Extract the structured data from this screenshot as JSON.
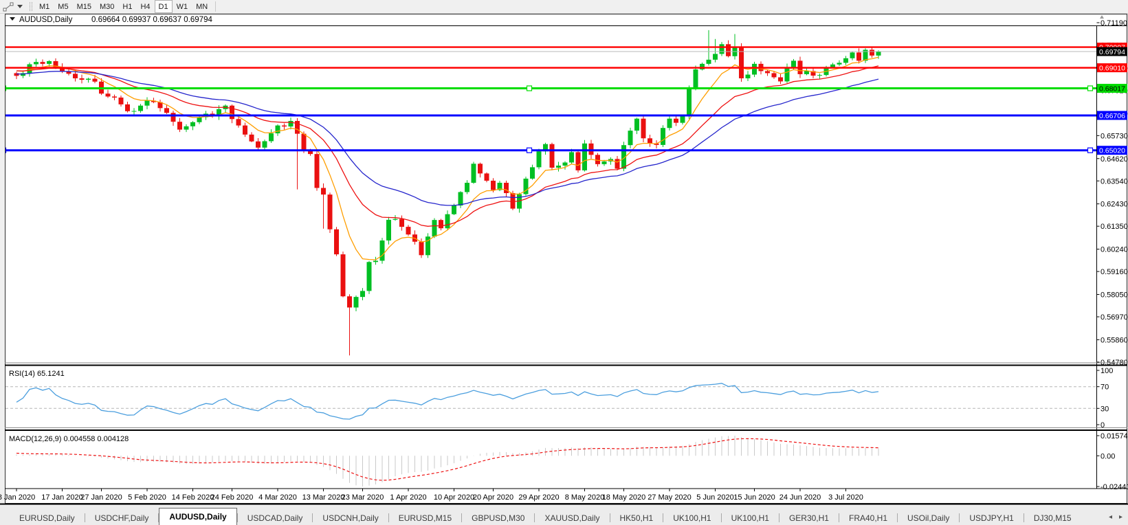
{
  "toolbar": {
    "timeframes": [
      {
        "label": "M1",
        "active": false
      },
      {
        "label": "M5",
        "active": false
      },
      {
        "label": "M15",
        "active": false
      },
      {
        "label": "M30",
        "active": false
      },
      {
        "label": "H1",
        "active": false
      },
      {
        "label": "H4",
        "active": false
      },
      {
        "label": "D1",
        "active": true
      },
      {
        "label": "W1",
        "active": false
      },
      {
        "label": "MN",
        "active": false
      }
    ]
  },
  "chart_title": {
    "symbol": "AUDUSD,Daily",
    "ohlc": "0.69664 0.69937 0.69637 0.69794"
  },
  "chart_data": {
    "type": "candlestick",
    "symbol": "AUDUSD",
    "timeframe": "Daily",
    "ohlc_display": {
      "open": "0.69664",
      "high": "0.69937",
      "low": "0.69637",
      "close": "0.69794"
    },
    "closes": [
      0.6862,
      0.6875,
      0.6918,
      0.6929,
      0.692,
      0.6933,
      0.6905,
      0.6885,
      0.6872,
      0.685,
      0.6843,
      0.6848,
      0.6834,
      0.6776,
      0.6762,
      0.6757,
      0.6724,
      0.6691,
      0.6692,
      0.6718,
      0.6742,
      0.6735,
      0.6706,
      0.6683,
      0.664,
      0.6602,
      0.6618,
      0.6638,
      0.6662,
      0.6679,
      0.6668,
      0.6701,
      0.6718,
      0.6653,
      0.6622,
      0.6578,
      0.6545,
      0.6515,
      0.6546,
      0.6584,
      0.6622,
      0.6617,
      0.6644,
      0.6582,
      0.6502,
      0.6484,
      0.632,
      0.6288,
      0.612,
      0.5999,
      0.5796,
      0.5742,
      0.5793,
      0.5822,
      0.5962,
      0.5968,
      0.6066,
      0.6166,
      0.617,
      0.6132,
      0.6095,
      0.606,
      0.5995,
      0.6085,
      0.6165,
      0.6125,
      0.6193,
      0.6235,
      0.63,
      0.6345,
      0.6437,
      0.639,
      0.6355,
      0.631,
      0.6345,
      0.6295,
      0.622,
      0.629,
      0.6365,
      0.642,
      0.6497,
      0.6532,
      0.6418,
      0.6428,
      0.6443,
      0.6493,
      0.6405,
      0.6535,
      0.648,
      0.6435,
      0.6448,
      0.646,
      0.6413,
      0.6527,
      0.6597,
      0.6655,
      0.656,
      0.6535,
      0.6528,
      0.661,
      0.6655,
      0.6635,
      0.6667,
      0.6797,
      0.6893,
      0.692,
      0.694,
      0.6968,
      0.7015,
      0.6957,
      0.7,
      0.685,
      0.6868,
      0.692,
      0.6885,
      0.6875,
      0.6855,
      0.6835,
      0.6905,
      0.6935,
      0.687,
      0.6885,
      0.6863,
      0.6866,
      0.6903,
      0.6917,
      0.6925,
      0.6947,
      0.6975,
      0.6935,
      0.6988,
      0.696,
      0.6979
    ],
    "specials": {
      "43": {
        "low": 0.6313
      },
      "47": {
        "low": 0.6123,
        "high": 0.6342
      },
      "51": {
        "low": 0.551
      },
      "106": {
        "high": 0.7083
      },
      "107": {
        "high": 0.704
      },
      "110": {
        "high": 0.7064
      }
    },
    "date_ticks": [
      [
        0,
        "8 Jan 2020"
      ],
      [
        7,
        "17 Jan 2020"
      ],
      [
        13,
        "27 Jan 2020"
      ],
      [
        20,
        "5 Feb 2020"
      ],
      [
        27,
        "14 Feb 2020"
      ],
      [
        33,
        "24 Feb 2020"
      ],
      [
        40,
        "4 Mar 2020"
      ],
      [
        47,
        "13 Mar 2020"
      ],
      [
        53,
        "23 Mar 2020"
      ],
      [
        60,
        "1 Apr 2020"
      ],
      [
        67,
        "10 Apr 2020"
      ],
      [
        73,
        "20 Apr 2020"
      ],
      [
        80,
        "29 Apr 2020"
      ],
      [
        87,
        "8 May 2020"
      ],
      [
        93,
        "18 May 2020"
      ],
      [
        100,
        "27 May 2020"
      ],
      [
        107,
        "5 Jun 2020"
      ],
      [
        113,
        "15 Jun 2020"
      ],
      [
        120,
        "24 Jun 2020"
      ],
      [
        127,
        "3 Jul 2020"
      ]
    ],
    "price_ticks": [
      "0.71190",
      "0.70110",
      "0.69000",
      "0.67920",
      "0.66810",
      "0.65730",
      "0.64620",
      "0.63540",
      "0.62430",
      "0.61350",
      "0.60240",
      "0.59160",
      "0.58050",
      "0.56970",
      "0.55860",
      "0.54780"
    ],
    "hlines": [
      {
        "price": 0.70007,
        "label": "0.70007",
        "color": "#ff0000",
        "text": "#ffffff",
        "width": 2.4,
        "selected": false
      },
      {
        "price": 0.6901,
        "label": "0.69010",
        "color": "#ff0000",
        "text": "#ffffff",
        "width": 2.4,
        "selected": false
      },
      {
        "price": 0.68017,
        "label": "0.68017",
        "color": "#00dd00",
        "text": "#000000",
        "width": 3,
        "selected": true
      },
      {
        "price": 0.66706,
        "label": "0.66706",
        "color": "#0000ff",
        "text": "#ffffff",
        "width": 3,
        "selected": false
      },
      {
        "price": 0.6502,
        "label": "0.65020",
        "color": "#0000ff",
        "text": "#ffffff",
        "width": 3,
        "selected": true
      }
    ],
    "current_price": {
      "value": 0.69794,
      "label": "0.69794",
      "line_color": "#b8b8b8",
      "box_color": "#000000"
    },
    "moving_averages": [
      {
        "name": "ma-fast",
        "period": 8,
        "color": "#ff9e00"
      },
      {
        "name": "ma-mid",
        "period": 20,
        "color": "#ee1111"
      },
      {
        "name": "ma-slow",
        "period": 34,
        "color": "#2525cc"
      }
    ],
    "rsi": {
      "label": "RSI(14) 65.1241",
      "period": 14,
      "axis_labels": [
        "100",
        "70",
        "30",
        "0"
      ],
      "level_lines": [
        70,
        30
      ],
      "color": "#4a9ede"
    },
    "macd": {
      "label": "MACD(12,26,9) 0.004558 0.004128",
      "fast": 12,
      "slow": 26,
      "signal": 9,
      "axis_labels": [
        "0.015741",
        "0.00",
        "-0.024412"
      ],
      "histogram_color": "#c9c9c9",
      "signal_color": "#ee1111"
    },
    "colors": {
      "up": "#00bf23",
      "down": "#ea1010",
      "background": "#ffffff"
    }
  },
  "tabs": [
    {
      "label": "EURUSD,Daily",
      "active": false
    },
    {
      "label": "USDCHF,Daily",
      "active": false
    },
    {
      "label": "AUDUSD,Daily",
      "active": true
    },
    {
      "label": "USDCAD,Daily",
      "active": false
    },
    {
      "label": "USDCNH,Daily",
      "active": false
    },
    {
      "label": "EURUSD,M15",
      "active": false
    },
    {
      "label": "GBPUSD,M30",
      "active": false
    },
    {
      "label": "XAUUSD,Daily",
      "active": false
    },
    {
      "label": "HK50,H1",
      "active": false
    },
    {
      "label": "UK100,H1",
      "active": false
    },
    {
      "label": "UK100,H1",
      "active": false
    },
    {
      "label": "GER30,H1",
      "active": false
    },
    {
      "label": "FRA40,H1",
      "active": false
    },
    {
      "label": "USOil,Daily",
      "active": false
    },
    {
      "label": "USDJPY,H1",
      "active": false
    },
    {
      "label": "DJ30,M15",
      "active": false
    }
  ],
  "tab_arrows": {
    "left": "◂",
    "right": "▸"
  }
}
